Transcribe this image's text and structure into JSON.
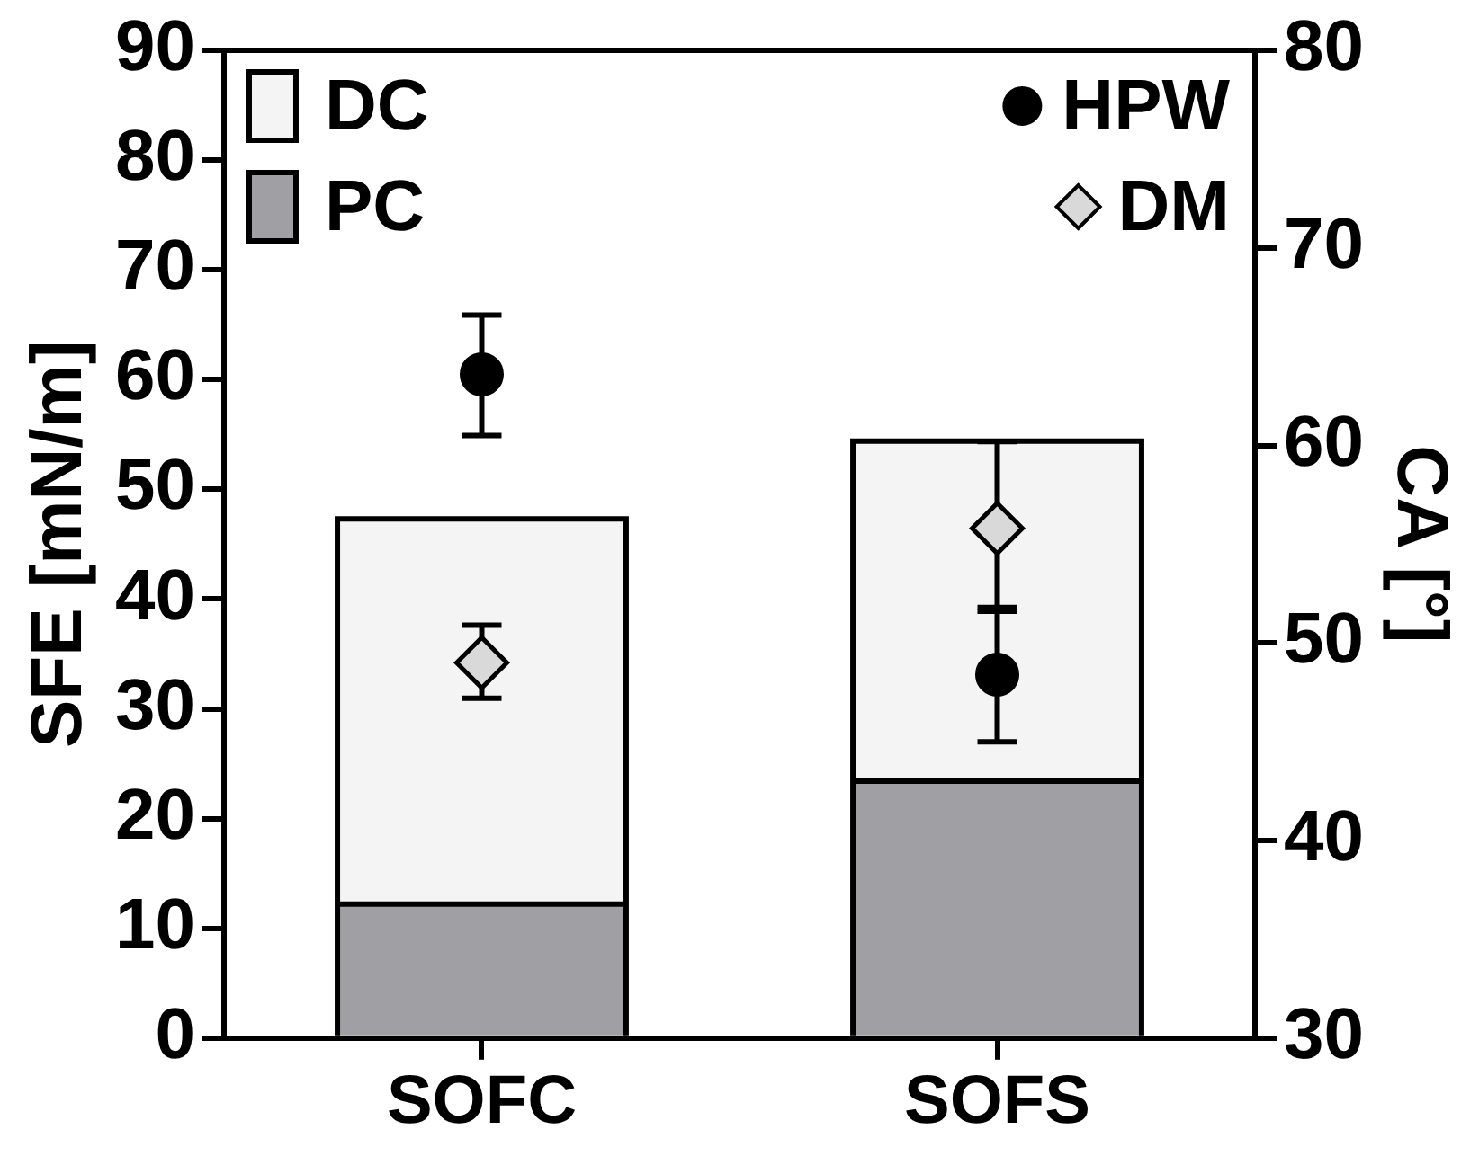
{
  "chart_data": {
    "type": "bar",
    "categories": [
      "SOFC",
      "SOFS"
    ],
    "stacked": true,
    "ylabel": "SFE [mN/m]",
    "y2label": "CA [°]",
    "ylim": [
      0,
      90
    ],
    "yticks": [
      0,
      10,
      20,
      30,
      40,
      50,
      60,
      70,
      80,
      90
    ],
    "y2lim": [
      30,
      80
    ],
    "y2ticks": [
      30,
      40,
      50,
      60,
      70,
      80
    ],
    "legend": "top",
    "series": [
      {
        "name": "PC",
        "color": "#a09fa4",
        "values": [
          12.2,
          23.4
        ]
      },
      {
        "name": "DC",
        "color": "#f4f4f4",
        "values": [
          35.1,
          31.0
        ]
      },
      {
        "name": "HPW",
        "type": "scatter",
        "axis": "y2",
        "x": [
          "SOFC",
          "SOFS"
        ],
        "color": "#000000",
        "marker": "circle",
        "values": [
          63.6,
          48.4
        ],
        "errors": [
          [
            60.5,
            66.6
          ],
          [
            45.0,
            51.6
          ]
        ]
      },
      {
        "name": "DM",
        "type": "scatter",
        "axis": "y2",
        "x": [
          "SOFC",
          "SOFS"
        ],
        "color": "#d9d9d9",
        "marker": "diamond",
        "values": [
          49.0,
          55.8
        ],
        "errors": [
          [
            47.2,
            50.9
          ],
          [
            51.8,
            60.2
          ]
        ]
      }
    ]
  }
}
